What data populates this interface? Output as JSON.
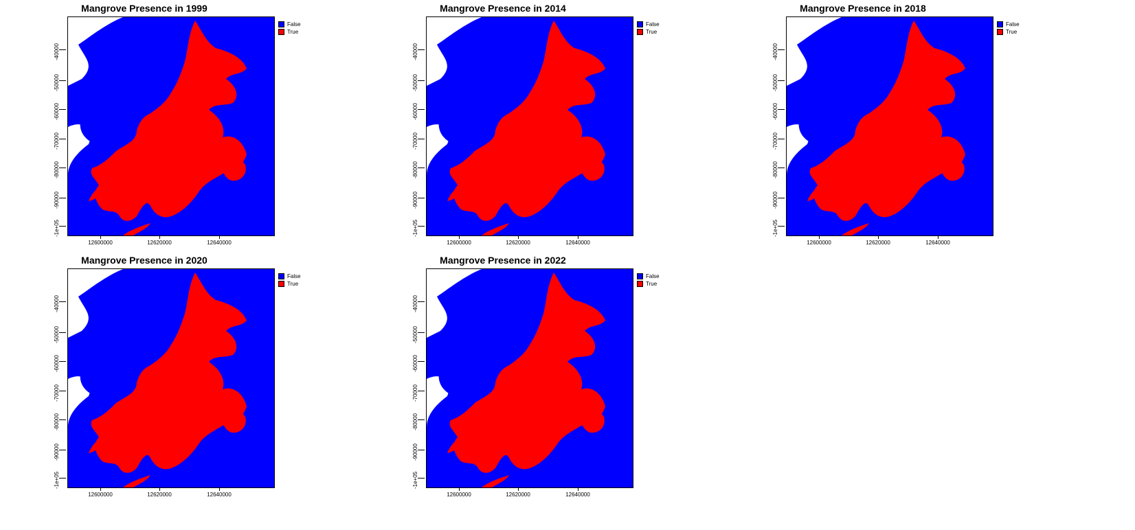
{
  "colors": {
    "false": "#0000FF",
    "true": "#FF0000",
    "background": "#FFFFFF"
  },
  "legend": {
    "false_label": "False",
    "true_label": "True"
  },
  "axes": {
    "y_ticks": [
      "-40000",
      "-50000",
      "-60000",
      "-70000",
      "-80000",
      "-90000",
      "-1e+05"
    ],
    "x_ticks": [
      "12600000",
      "12620000",
      "12640000"
    ]
  },
  "panels": [
    {
      "title": "Mangrove Presence in 1999",
      "year": "1999"
    },
    {
      "title": "Mangrove Presence in 2014",
      "year": "2014"
    },
    {
      "title": "Mangrove Presence in 2018",
      "year": "2018"
    },
    {
      "title": "Mangrove Presence in 2020",
      "year": "2020"
    },
    {
      "title": "Mangrove Presence in 2022",
      "year": "2022"
    }
  ]
}
